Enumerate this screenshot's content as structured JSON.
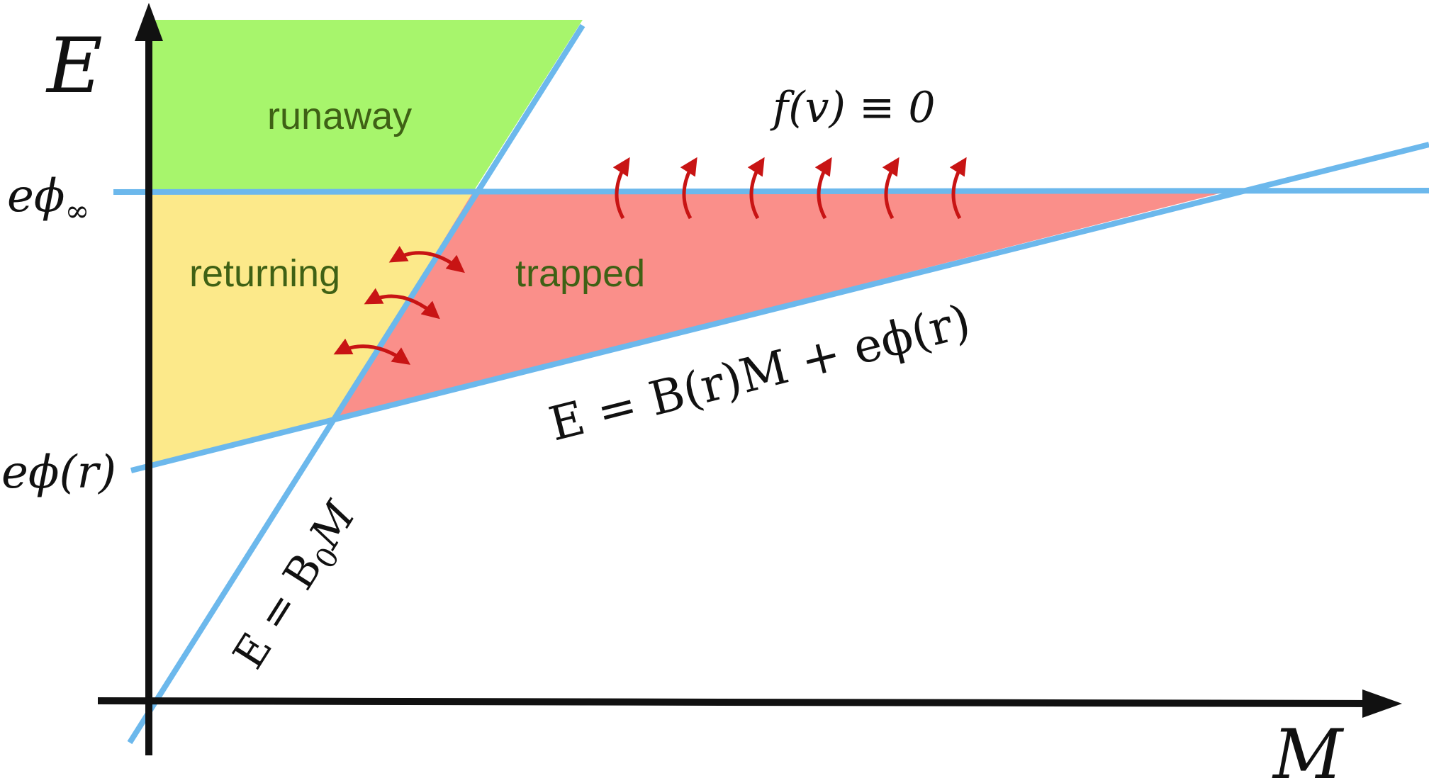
{
  "colors": {
    "runaway_fill": "#a7f56c",
    "returning_fill": "#fce98a",
    "trapped_fill": "#fa8f8a",
    "boundary_line": "#6cb8ec",
    "axis": "#111111",
    "arrow": "#c81414",
    "region_text": "#3f6115",
    "math_text": "#111111"
  },
  "axes": {
    "y_label": "E",
    "x_label": "M"
  },
  "regions": {
    "runaway": "runaway",
    "returning": "returning",
    "trapped": "trapped"
  },
  "y_ticks": {
    "phi_inf_base": "eϕ",
    "phi_inf_sub": "∞",
    "phi_r": "eϕ(r)"
  },
  "equations": {
    "distribution": "f(v) ≡ 0",
    "bounce_line_base": "E = B",
    "bounce_line_sub": "0",
    "bounce_line_end": "M",
    "potential_line": "E = B(r)M + eϕ(r)"
  },
  "arrows": {
    "exchange_count": 3,
    "loss_count": 6
  }
}
